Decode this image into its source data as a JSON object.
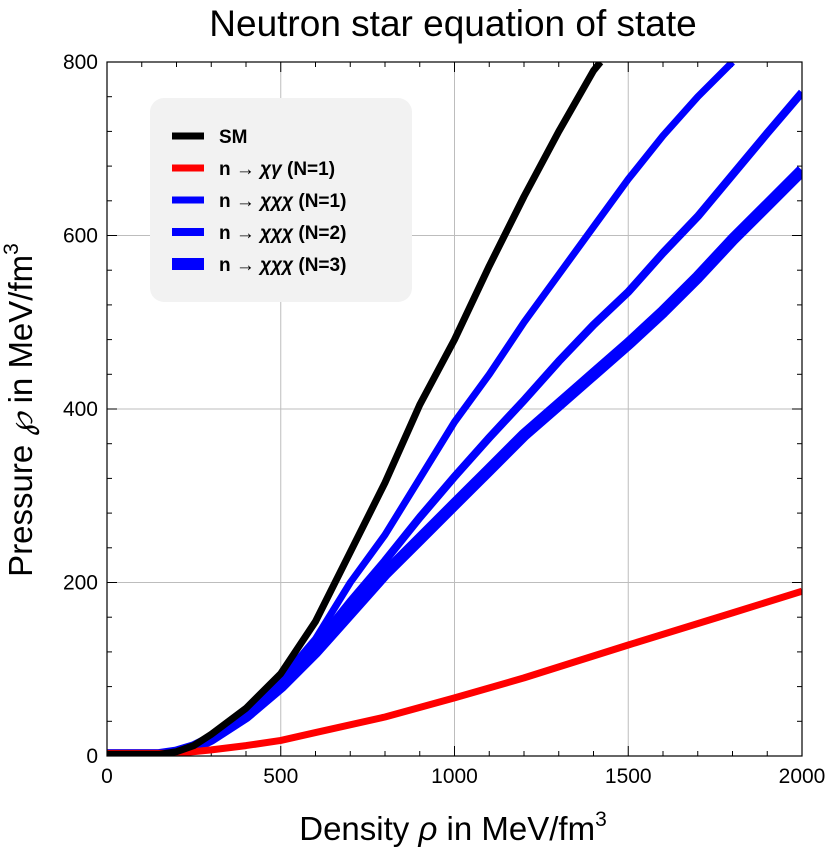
{
  "chart_data": {
    "type": "line",
    "title": "Neutron star equation of state",
    "xlabel": {
      "main": "Density ",
      "symbol": "ρ",
      "rest": " in MeV/fm",
      "sup": "3"
    },
    "ylabel": {
      "main": "Pressure ",
      "symbol": "℘",
      "rest": " in MeV/fm",
      "sup": "3"
    },
    "xlim": [
      0,
      2000
    ],
    "ylim": [
      0,
      800
    ],
    "xticks": [
      0,
      500,
      1000,
      1500,
      2000
    ],
    "yticks": [
      0,
      200,
      400,
      600,
      800
    ],
    "xtick_labels": [
      "0",
      "500",
      "1000",
      "1500",
      "2000"
    ],
    "ytick_labels": [
      "0",
      "200",
      "400",
      "600",
      "800"
    ],
    "grid": true,
    "legend_position": "top-left",
    "series": [
      {
        "name": "SM",
        "label_main": "SM",
        "label_italic": "",
        "label_suffix": "",
        "color": "#000000",
        "width": 7,
        "x": [
          0,
          150,
          200,
          250,
          300,
          400,
          500,
          600,
          700,
          800,
          900,
          1000,
          1100,
          1200,
          1300,
          1400,
          1420
        ],
        "y": [
          2,
          2,
          5,
          12,
          25,
          55,
          95,
          155,
          235,
          315,
          405,
          480,
          565,
          645,
          720,
          790,
          800
        ]
      },
      {
        "name": "n → χγ (N=1)",
        "label_main": "n → ",
        "label_italic": "χγ",
        "label_suffix": " (N=1)",
        "color": "#ff0000",
        "width": 7,
        "x": [
          0,
          200,
          300,
          400,
          500,
          600,
          800,
          1000,
          1200,
          1500,
          1800,
          2000
        ],
        "y": [
          3,
          3,
          7,
          12,
          18,
          27,
          45,
          67,
          90,
          128,
          165,
          190
        ]
      },
      {
        "name": "n → χχχ (N=1)",
        "label_main": "n → ",
        "label_italic": "χχχ",
        "label_suffix": " (N=1)",
        "color": "#0000ff",
        "width": 7,
        "x": [
          0,
          150,
          200,
          250,
          300,
          400,
          500,
          600,
          700,
          800,
          900,
          1000,
          1100,
          1200,
          1300,
          1400,
          1500,
          1600,
          1700,
          1800
        ],
        "y": [
          1,
          1,
          4,
          10,
          22,
          50,
          88,
          135,
          200,
          255,
          320,
          385,
          440,
          500,
          555,
          610,
          665,
          715,
          760,
          800
        ]
      },
      {
        "name": "n → χχχ (N=2)",
        "label_main": "n → ",
        "label_italic": "χχχ",
        "label_suffix": " (N=2)",
        "color": "#0000ff",
        "width": 8,
        "x": [
          0,
          150,
          200,
          250,
          300,
          400,
          500,
          600,
          700,
          800,
          900,
          1000,
          1100,
          1200,
          1300,
          1400,
          1500,
          1600,
          1700,
          1800,
          1900,
          2000
        ],
        "y": [
          1,
          1,
          4,
          10,
          21,
          48,
          84,
          128,
          178,
          225,
          275,
          322,
          367,
          410,
          455,
          497,
          535,
          580,
          622,
          670,
          718,
          765
        ]
      },
      {
        "name": "n → χχχ (N=3)",
        "label_main": "n → ",
        "label_italic": "χχχ",
        "label_suffix": " (N=3)",
        "color": "#0000ff",
        "width": 12,
        "x": [
          0,
          150,
          200,
          250,
          300,
          400,
          500,
          600,
          700,
          800,
          900,
          1000,
          1100,
          1200,
          1300,
          1400,
          1500,
          1600,
          1700,
          1800,
          1900,
          2000
        ],
        "y": [
          1,
          1,
          4,
          10,
          20,
          46,
          80,
          120,
          165,
          210,
          250,
          290,
          330,
          370,
          405,
          440,
          475,
          512,
          552,
          595,
          635,
          675
        ]
      }
    ]
  }
}
